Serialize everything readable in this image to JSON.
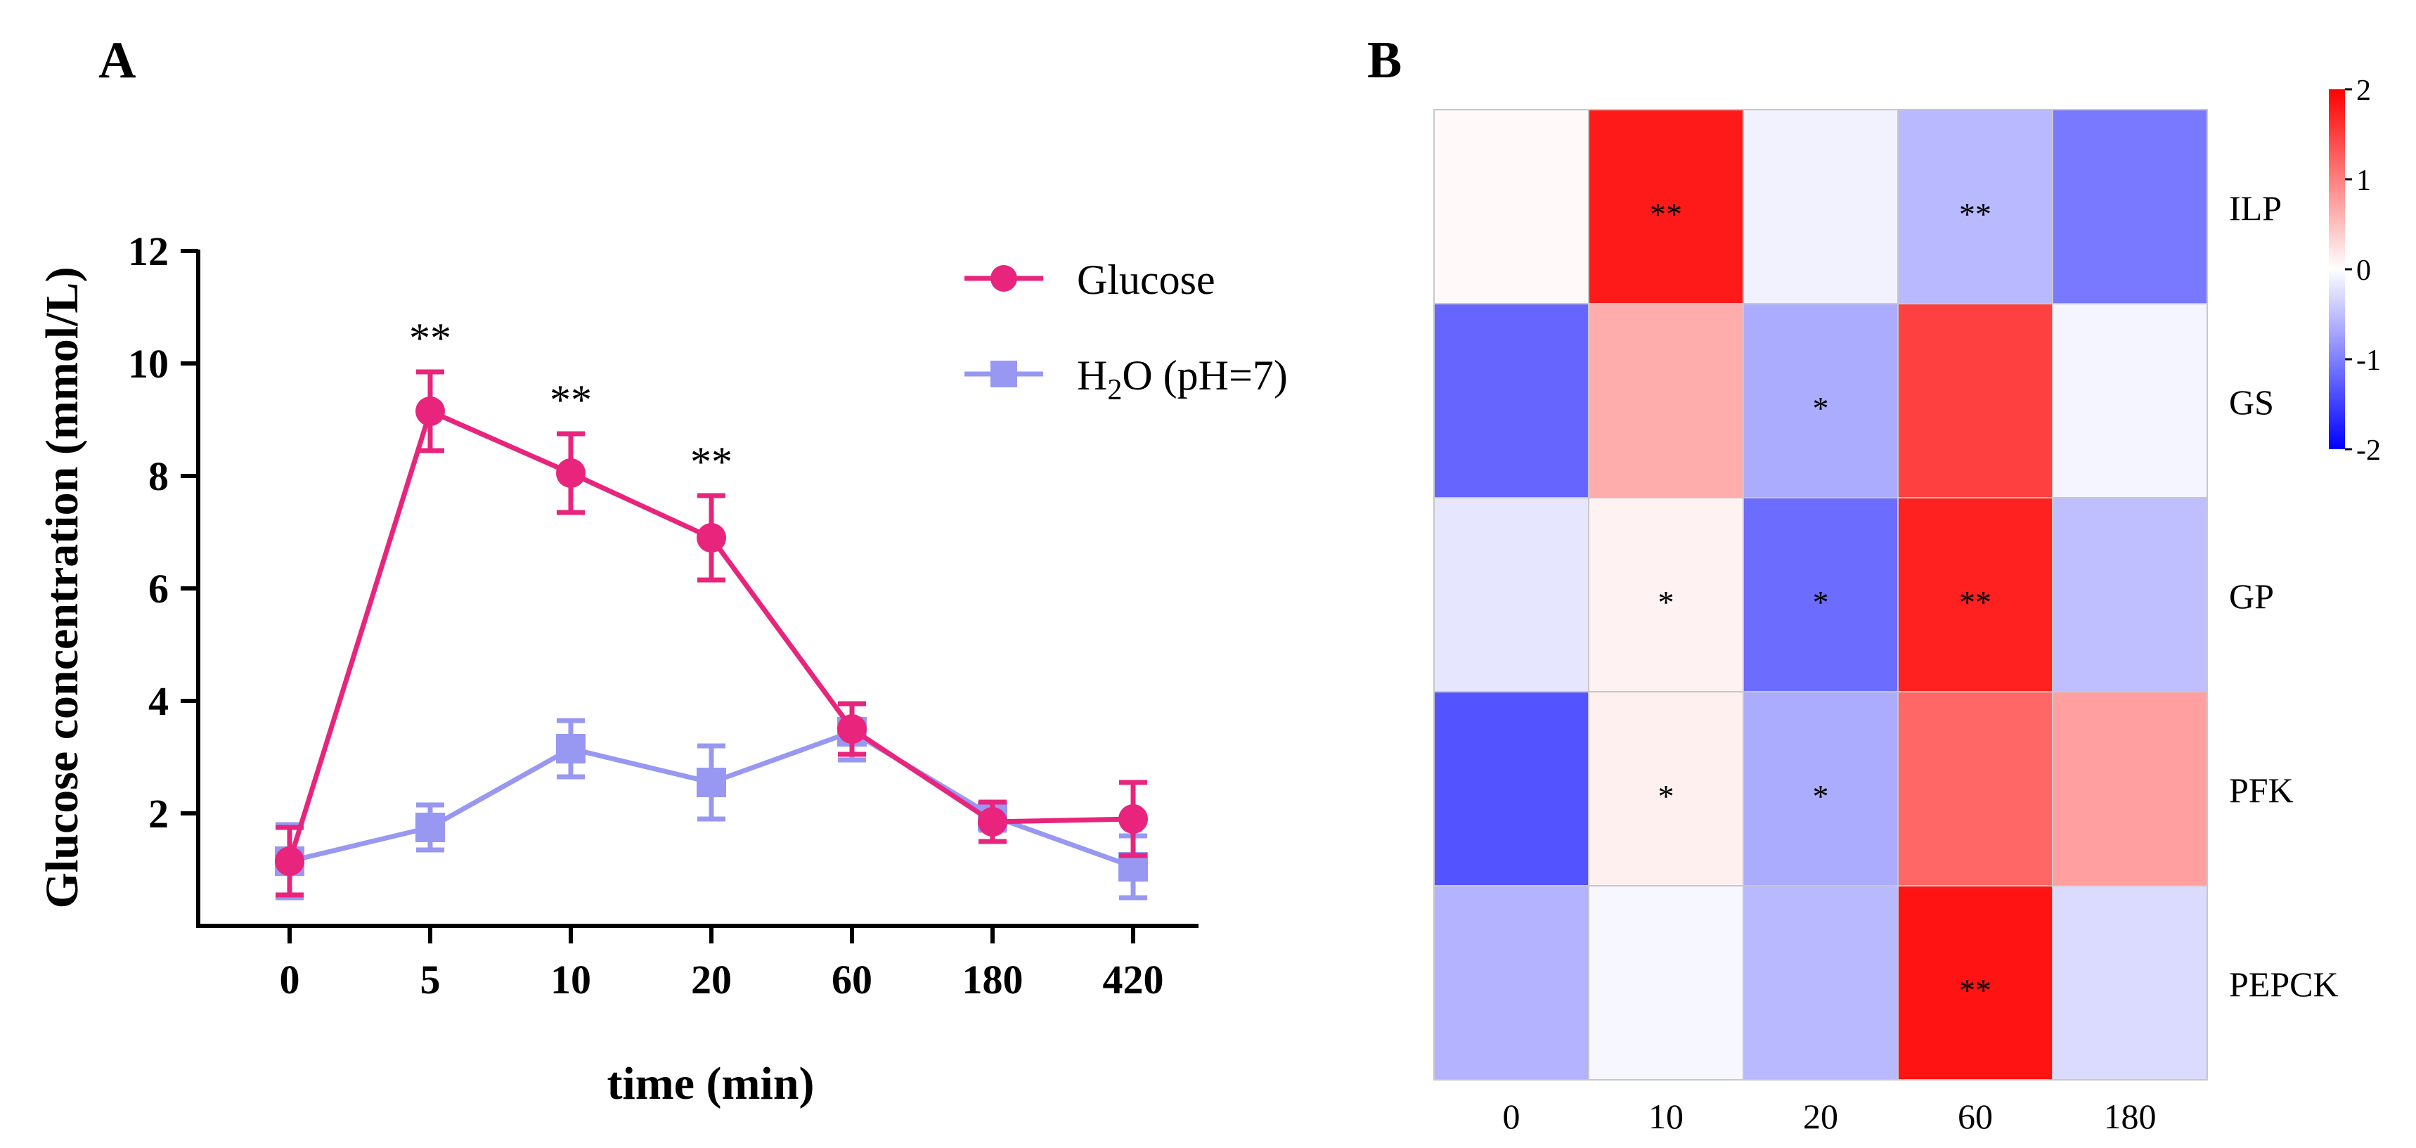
{
  "panels": {
    "a_label": "A",
    "b_label": "B"
  },
  "chart_data": [
    {
      "type": "line",
      "panel": "A",
      "xlabel": "time (min)",
      "ylabel": "Glucose concentration (mmol/L)",
      "categories": [
        "0",
        "5",
        "10",
        "20",
        "60",
        "180",
        "420"
      ],
      "ylim": [
        0,
        12
      ],
      "yticks": [
        2,
        4,
        6,
        8,
        10,
        12
      ],
      "legend_position": "top-right",
      "series": [
        {
          "name": "Glucose",
          "color": "#e8247c",
          "marker": "circle",
          "values": [
            1.15,
            9.15,
            8.05,
            6.9,
            3.5,
            1.85,
            1.9
          ],
          "errors": [
            0.6,
            0.7,
            0.7,
            0.75,
            0.45,
            0.35,
            0.65
          ],
          "significance": [
            "",
            "**",
            "**",
            "**",
            "",
            "",
            ""
          ]
        },
        {
          "name": "H2O (pH=7)",
          "legend_text": {
            "prefix": "H",
            "sub": "2",
            "suffix": "O (pH=7)"
          },
          "color": "#9898f2",
          "marker": "square",
          "values": [
            1.15,
            1.75,
            3.15,
            2.55,
            3.45,
            1.95,
            1.05
          ],
          "errors": [
            0.65,
            0.4,
            0.5,
            0.65,
            0.5,
            0.25,
            0.55
          ],
          "significance": [
            "",
            "",
            "",
            "",
            "",
            "",
            ""
          ]
        }
      ]
    },
    {
      "type": "heatmap",
      "panel": "B",
      "columns": [
        "0",
        "10",
        "20",
        "60",
        "180"
      ],
      "rows": [
        "ILP",
        "GS",
        "GP",
        "PFK",
        "PEPCK"
      ],
      "values": [
        [
          0.05,
          1.8,
          -0.1,
          -0.55,
          -1.05
        ],
        [
          -1.2,
          0.65,
          -0.65,
          1.5,
          -0.08
        ],
        [
          -0.2,
          0.1,
          -1.15,
          1.75,
          -0.5
        ],
        [
          -1.35,
          0.12,
          -0.65,
          1.2,
          0.75
        ],
        [
          -0.6,
          -0.06,
          -0.55,
          1.85,
          -0.28
        ]
      ],
      "significance": [
        [
          "",
          "**",
          "",
          "**",
          ""
        ],
        [
          "",
          "",
          "*",
          "",
          ""
        ],
        [
          "",
          "*",
          "*",
          "**",
          ""
        ],
        [
          "",
          "*",
          "*",
          "",
          ""
        ],
        [
          "",
          "",
          "",
          "**",
          ""
        ]
      ],
      "colorbar": {
        "min": -2,
        "max": 2,
        "ticks": [
          "2",
          "1",
          "0",
          "-1",
          "-2"
        ],
        "low_color": "#0000ff",
        "mid_color": "#ffffff",
        "high_color": "#ff0000"
      }
    }
  ]
}
